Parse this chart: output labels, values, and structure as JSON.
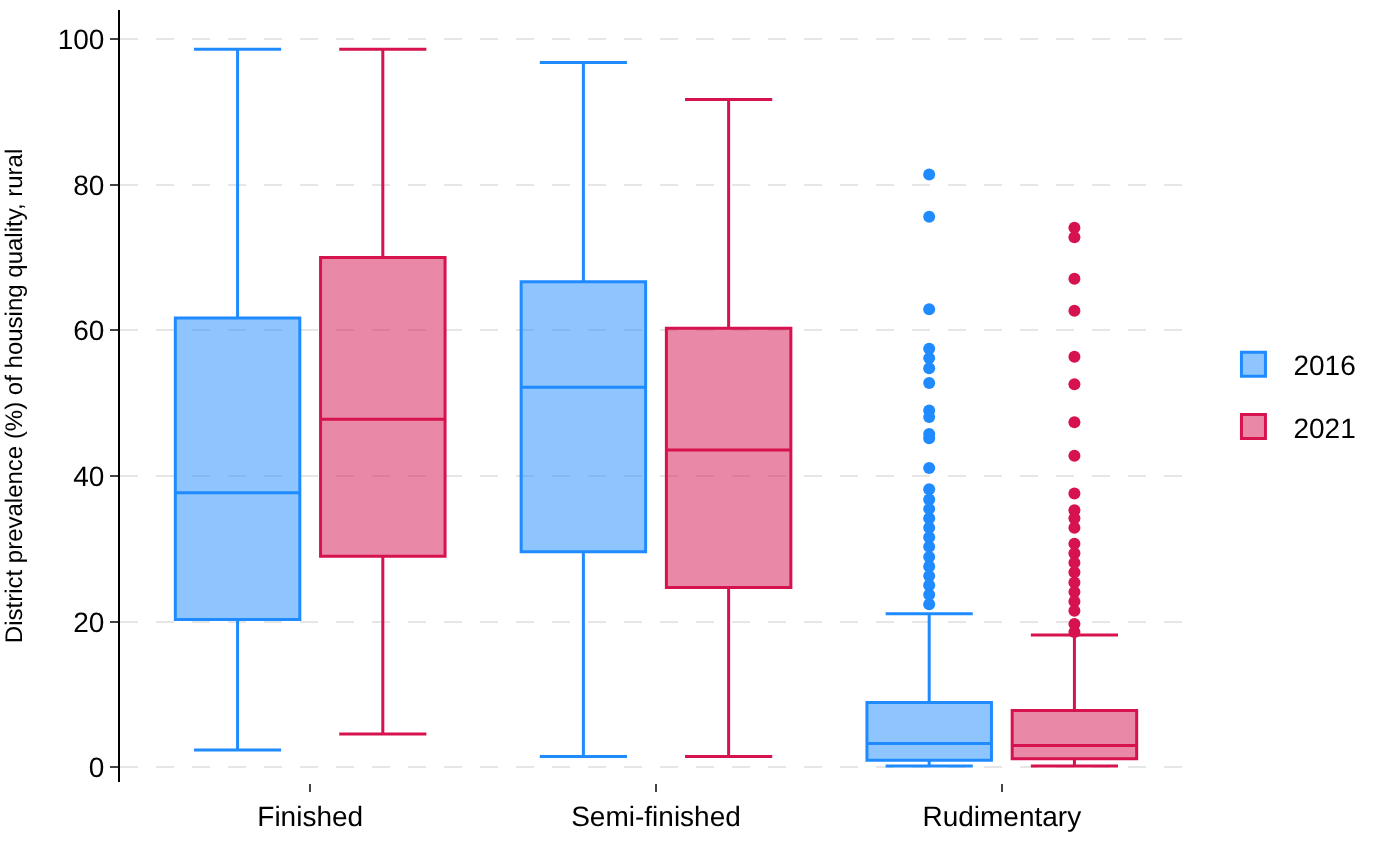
{
  "chart_data": {
    "type": "box",
    "ylabel": "District prevalence (%) of housing quality, rural",
    "categories": [
      "Finished",
      "Semi-finished",
      "Rudimentary"
    ],
    "ylim": [
      -2,
      104
    ],
    "yticks": [
      0,
      20,
      40,
      60,
      80,
      100
    ],
    "grid": "y",
    "legend": "right",
    "series": [
      {
        "name": "2016",
        "color": "#1f8bff",
        "boxes": [
          {
            "low": 2.4,
            "q1": 20.3,
            "median": 37.7,
            "q3": 61.7,
            "high": 98.6
          },
          {
            "low": 1.5,
            "q1": 29.6,
            "median": 52.2,
            "q3": 66.7,
            "high": 96.8
          },
          {
            "low": 0.2,
            "q1": 1.0,
            "median": 3.3,
            "q3": 8.9,
            "high": 21.1,
            "outliers": [
              81.4,
              75.6,
              62.9,
              57.5,
              56.2,
              54.8,
              52.8,
              49.0,
              48.1,
              45.8,
              45.2,
              41.1,
              38.2,
              36.8,
              35.5,
              34.2,
              32.9,
              31.6,
              30.3,
              28.9,
              27.6,
              26.3,
              25.0,
              23.7,
              22.4
            ]
          }
        ]
      },
      {
        "name": "2021",
        "color": "#d6124f",
        "boxes": [
          {
            "low": 4.6,
            "q1": 29.0,
            "median": 47.8,
            "q3": 70.0,
            "high": 98.6
          },
          {
            "low": 1.5,
            "q1": 24.7,
            "median": 43.6,
            "q3": 60.3,
            "high": 91.7
          },
          {
            "low": 0.2,
            "q1": 1.2,
            "median": 3.0,
            "q3": 7.8,
            "high": 18.2,
            "outliers": [
              74.1,
              72.8,
              67.1,
              62.7,
              56.4,
              52.6,
              47.4,
              42.8,
              37.6,
              35.3,
              34.2,
              32.9,
              30.7,
              29.4,
              28.1,
              26.8,
              25.4,
              24.1,
              22.8,
              21.5,
              19.7,
              18.6
            ]
          }
        ]
      }
    ]
  }
}
